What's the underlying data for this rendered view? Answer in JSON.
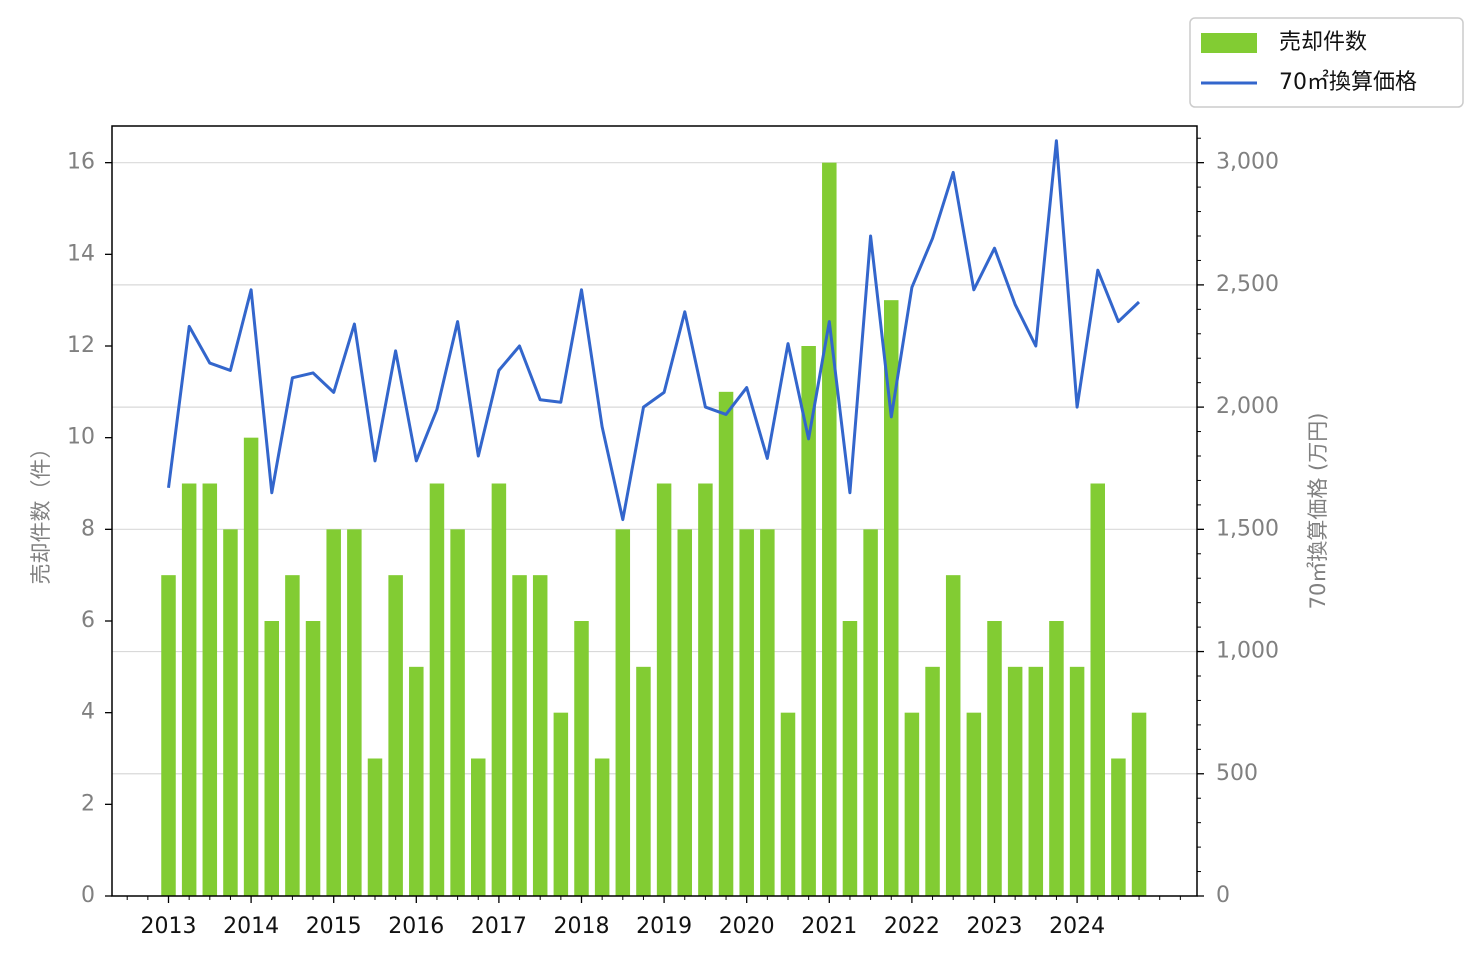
{
  "chart_data": {
    "type": "bar+line",
    "x": [
      "2013 Q1",
      "2013 Q2",
      "2013 Q3",
      "2013 Q4",
      "2014 Q1",
      "2014 Q2",
      "2014 Q3",
      "2014 Q4",
      "2015 Q1",
      "2015 Q2",
      "2015 Q3",
      "2015 Q4",
      "2016 Q1",
      "2016 Q2",
      "2016 Q3",
      "2016 Q4",
      "2017 Q1",
      "2017 Q2",
      "2017 Q3",
      "2017 Q4",
      "2018 Q1",
      "2018 Q2",
      "2018 Q3",
      "2018 Q4",
      "2019 Q1",
      "2019 Q2",
      "2019 Q3",
      "2019 Q4",
      "2020 Q1",
      "2020 Q2",
      "2020 Q3",
      "2020 Q4",
      "2021 Q1",
      "2021 Q2",
      "2021 Q3",
      "2021 Q4",
      "2022 Q1",
      "2022 Q2",
      "2022 Q3",
      "2022 Q4",
      "2023 Q1",
      "2023 Q2",
      "2023 Q3",
      "2023 Q4",
      "2024 Q1",
      "2024 Q2",
      "2024 Q3",
      "2024 Q4"
    ],
    "x_tick_labels": [
      "2013",
      "2014",
      "2015",
      "2016",
      "2017",
      "2018",
      "2019",
      "2020",
      "2021",
      "2022",
      "2023",
      "2024"
    ],
    "series": [
      {
        "name": "売却件数",
        "type": "bar",
        "axis": "left",
        "color": "#82cc33",
        "values": [
          7,
          9,
          9,
          8,
          10,
          6,
          7,
          6,
          8,
          8,
          3,
          7,
          5,
          9,
          8,
          3,
          9,
          7,
          7,
          4,
          6,
          3,
          8,
          5,
          9,
          8,
          9,
          11,
          8,
          8,
          4,
          12,
          16,
          6,
          8,
          13,
          4,
          5,
          7,
          4,
          6,
          5,
          5,
          6,
          5,
          9,
          3,
          4
        ]
      },
      {
        "name": "70㎡換算価格",
        "type": "line",
        "axis": "right",
        "color": "#3366cc",
        "values": [
          1670,
          2330,
          2180,
          2150,
          2480,
          1650,
          2120,
          2140,
          2060,
          2340,
          1780,
          2230,
          1780,
          1990,
          2350,
          1800,
          2150,
          2250,
          2030,
          2020,
          2480,
          1920,
          1540,
          2000,
          2060,
          2390,
          2000,
          1970,
          2080,
          1790,
          2260,
          1870,
          2350,
          1650,
          2700,
          1960,
          2490,
          2690,
          2960,
          2480,
          2650,
          2420,
          2250,
          3090,
          2000,
          2560,
          2350,
          2430
        ]
      }
    ],
    "left_axis": {
      "label": "売却件数（件）",
      "ylim": [
        0,
        16.8
      ],
      "ticks": [
        0,
        2,
        4,
        6,
        8,
        10,
        12,
        14,
        16
      ]
    },
    "right_axis": {
      "label": "70㎡換算価格 (万円)",
      "ylim": [
        0,
        3150
      ],
      "ticks": [
        0,
        500,
        1000,
        1500,
        2000,
        2500,
        3000
      ],
      "tick_labels": [
        "0",
        "500",
        "1,000",
        "1,500",
        "2,000",
        "2,500",
        "3,000"
      ]
    },
    "grid": "horizontal, right axis",
    "legend_position": "top-right, outside plot"
  }
}
